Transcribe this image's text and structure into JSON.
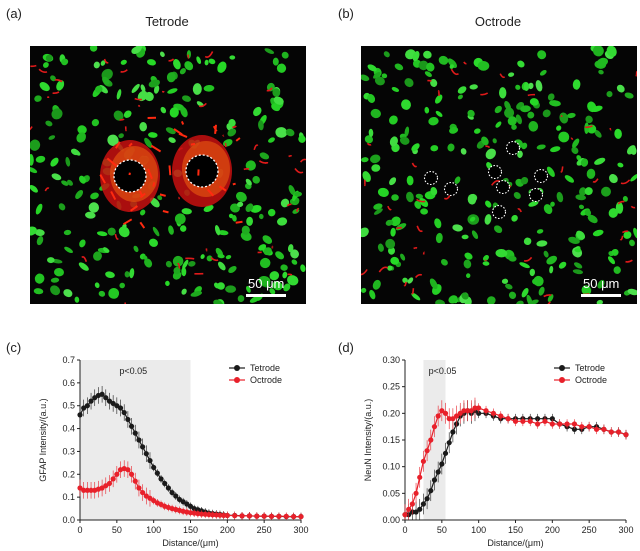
{
  "panels": {
    "a": {
      "letter": "(a)",
      "title": "Tetrode",
      "scale": "50 μm"
    },
    "b": {
      "letter": "(b)",
      "title": "Octrode",
      "scale": "50 μm"
    },
    "c": {
      "letter": "(c)"
    },
    "d": {
      "letter": "(d)"
    }
  },
  "colors": {
    "tetrode": "#1a1a1a",
    "octrode": "#e8202a",
    "shade": "#ebebeb",
    "cell_green": "#2fd02f",
    "fiber_red": "#e01a1a"
  },
  "chart_data": [
    {
      "type": "line",
      "xlabel": "Distance/(μm)",
      "ylabel": "GFAP Intensity/(a.u.)",
      "xlim": [
        0,
        300
      ],
      "ylim": [
        0,
        0.7
      ],
      "xticks": [
        0,
        50,
        100,
        150,
        200,
        250,
        300
      ],
      "yticks": [
        0.0,
        0.1,
        0.2,
        0.3,
        0.4,
        0.5,
        0.6,
        0.7
      ],
      "shade": [
        0,
        150
      ],
      "annotation": "p<0.05",
      "legend_position": "top-right",
      "series": [
        {
          "name": "Tetrode",
          "x": [
            0,
            5,
            10,
            15,
            20,
            25,
            30,
            35,
            40,
            45,
            50,
            55,
            60,
            65,
            70,
            75,
            80,
            85,
            90,
            95,
            100,
            105,
            110,
            115,
            120,
            125,
            130,
            135,
            140,
            145,
            150,
            155,
            160,
            165,
            170,
            175,
            180,
            185,
            190,
            195,
            200,
            210,
            220,
            230,
            240,
            250,
            260,
            270,
            280,
            290,
            300
          ],
          "y": [
            0.46,
            0.49,
            0.5,
            0.52,
            0.535,
            0.545,
            0.55,
            0.535,
            0.52,
            0.51,
            0.5,
            0.49,
            0.47,
            0.44,
            0.41,
            0.38,
            0.35,
            0.32,
            0.29,
            0.26,
            0.23,
            0.205,
            0.18,
            0.16,
            0.14,
            0.12,
            0.105,
            0.09,
            0.08,
            0.07,
            0.06,
            0.05,
            0.045,
            0.04,
            0.035,
            0.03,
            0.028,
            0.026,
            0.024,
            0.022,
            0.02,
            0.02,
            0.018,
            0.018,
            0.017,
            0.017,
            0.016,
            0.016,
            0.015,
            0.015,
            0.015
          ]
        },
        {
          "name": "Octrode",
          "x": [
            0,
            5,
            10,
            15,
            20,
            25,
            30,
            35,
            40,
            45,
            50,
            55,
            60,
            65,
            70,
            75,
            80,
            85,
            90,
            95,
            100,
            105,
            110,
            115,
            120,
            125,
            130,
            135,
            140,
            145,
            150,
            155,
            160,
            165,
            170,
            175,
            180,
            185,
            190,
            195,
            200,
            210,
            220,
            230,
            240,
            250,
            260,
            270,
            280,
            290,
            300
          ],
          "y": [
            0.14,
            0.13,
            0.13,
            0.13,
            0.13,
            0.135,
            0.14,
            0.15,
            0.16,
            0.18,
            0.2,
            0.22,
            0.225,
            0.22,
            0.2,
            0.17,
            0.14,
            0.12,
            0.105,
            0.095,
            0.085,
            0.075,
            0.068,
            0.06,
            0.055,
            0.05,
            0.046,
            0.042,
            0.038,
            0.035,
            0.032,
            0.03,
            0.028,
            0.026,
            0.025,
            0.024,
            0.023,
            0.022,
            0.021,
            0.02,
            0.02,
            0.019,
            0.018,
            0.018,
            0.017,
            0.017,
            0.016,
            0.016,
            0.016,
            0.015,
            0.015
          ]
        }
      ]
    },
    {
      "type": "line",
      "xlabel": "Distance/(μm)",
      "ylabel": "NeuN Intensity/(a.u.)",
      "xlim": [
        0,
        300
      ],
      "ylim": [
        0,
        0.3
      ],
      "xticks": [
        0,
        50,
        100,
        150,
        200,
        250,
        300
      ],
      "yticks": [
        0.0,
        0.05,
        0.1,
        0.15,
        0.2,
        0.25,
        0.3
      ],
      "shade": [
        25,
        55
      ],
      "annotation": "p<0.05",
      "legend_position": "top-right",
      "series": [
        {
          "name": "Tetrode",
          "x": [
            0,
            5,
            10,
            15,
            20,
            25,
            30,
            35,
            40,
            45,
            50,
            55,
            60,
            65,
            70,
            75,
            80,
            85,
            90,
            95,
            100,
            110,
            120,
            130,
            140,
            150,
            160,
            170,
            180,
            190,
            200,
            210,
            220,
            230,
            240,
            250,
            260,
            270,
            280,
            290,
            300
          ],
          "y": [
            0.01,
            0.01,
            0.015,
            0.015,
            0.02,
            0.03,
            0.04,
            0.055,
            0.075,
            0.09,
            0.105,
            0.125,
            0.145,
            0.165,
            0.18,
            0.195,
            0.2,
            0.205,
            0.2,
            0.205,
            0.2,
            0.2,
            0.195,
            0.19,
            0.19,
            0.19,
            0.19,
            0.19,
            0.19,
            0.19,
            0.19,
            0.18,
            0.175,
            0.17,
            0.17,
            0.175,
            0.175,
            0.17,
            0.165,
            0.165,
            0.16
          ]
        },
        {
          "name": "Octrode",
          "x": [
            0,
            5,
            10,
            15,
            20,
            25,
            30,
            35,
            40,
            45,
            50,
            55,
            60,
            65,
            70,
            75,
            80,
            85,
            90,
            95,
            100,
            110,
            120,
            130,
            140,
            150,
            160,
            170,
            180,
            190,
            200,
            210,
            220,
            230,
            240,
            250,
            260,
            270,
            280,
            290,
            300
          ],
          "y": [
            0.01,
            0.02,
            0.03,
            0.05,
            0.08,
            0.11,
            0.13,
            0.15,
            0.175,
            0.195,
            0.205,
            0.2,
            0.19,
            0.19,
            0.195,
            0.2,
            0.205,
            0.205,
            0.205,
            0.21,
            0.21,
            0.205,
            0.2,
            0.195,
            0.19,
            0.185,
            0.185,
            0.185,
            0.18,
            0.185,
            0.18,
            0.18,
            0.18,
            0.18,
            0.175,
            0.175,
            0.17,
            0.17,
            0.165,
            0.165,
            0.16
          ]
        }
      ]
    }
  ]
}
